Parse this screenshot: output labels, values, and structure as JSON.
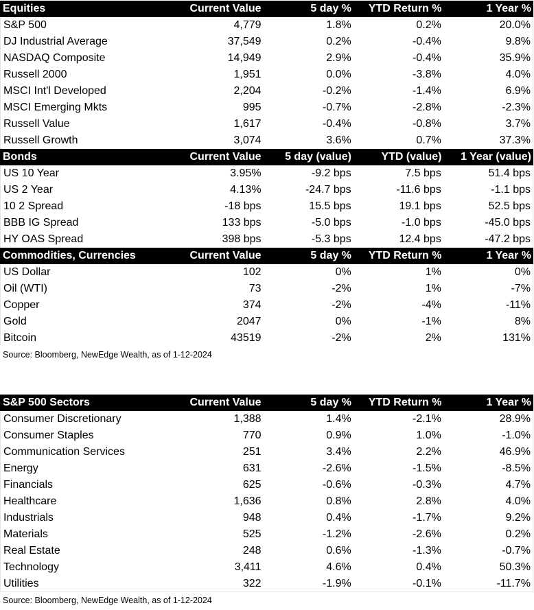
{
  "sections": [
    {
      "header": [
        "Equities",
        "Current Value",
        "5 day %",
        "YTD Return %",
        "1 Year %"
      ],
      "rows": [
        [
          "S&P 500",
          "4,779",
          "1.8%",
          "0.2%",
          "20.0%"
        ],
        [
          "DJ Industrial Average",
          "37,549",
          "0.2%",
          "-0.4%",
          "9.8%"
        ],
        [
          "NASDAQ Composite",
          "14,949",
          "2.9%",
          "-0.4%",
          "35.9%"
        ],
        [
          "Russell 2000",
          "1,951",
          "0.0%",
          "-3.8%",
          "4.0%"
        ],
        [
          "MSCI Int'l Developed",
          "2,204",
          "-0.2%",
          "-1.4%",
          "6.9%"
        ],
        [
          "MSCI Emerging Mkts",
          "995",
          "-0.7%",
          "-2.8%",
          "-2.3%"
        ],
        [
          "Russell Value",
          "1,617",
          "-0.4%",
          "-0.8%",
          "3.7%"
        ],
        [
          "Russell Growth",
          "3,074",
          "3.6%",
          "0.7%",
          "37.3%"
        ]
      ]
    },
    {
      "header": [
        "Bonds",
        "Current Value",
        "5 day (value)",
        "YTD (value)",
        "1 Year (value)"
      ],
      "rows": [
        [
          "US 10 Year",
          "3.95%",
          "-9.2 bps",
          "7.5 bps",
          "51.4 bps"
        ],
        [
          "US 2 Year",
          "4.13%",
          "-24.7 bps",
          "-11.6 bps",
          "-1.1 bps"
        ],
        [
          "10 2 Spread",
          "-18 bps",
          "15.5 bps",
          "19.1 bps",
          "52.5 bps"
        ],
        [
          "BBB IG Spread",
          "133 bps",
          "-5.0 bps",
          "-1.0 bps",
          "-45.0 bps"
        ],
        [
          "HY OAS Spread",
          "398 bps",
          "-5.3 bps",
          "12.4 bps",
          "-47.2 bps"
        ]
      ]
    },
    {
      "header": [
        "Commodities, Currencies",
        "Current Value",
        "5 day %",
        "YTD Return %",
        "1 Year %"
      ],
      "rows": [
        [
          "US Dollar",
          "102",
          "0%",
          "1%",
          "0%"
        ],
        [
          "Oil (WTI)",
          "73",
          "-2%",
          "1%",
          "-7%"
        ],
        [
          "Copper",
          "374",
          "-2%",
          "-4%",
          "-11%"
        ],
        [
          "Gold",
          "2047",
          "0%",
          "-1%",
          "8%"
        ],
        [
          "Bitcoin",
          "43519",
          "-2%",
          "2%",
          "131%"
        ]
      ]
    }
  ],
  "source1": "Source: Bloomberg, NewEdge Wealth, as of 1-12-2024",
  "sectors": {
    "header": [
      "S&P 500 Sectors",
      "Current Value",
      "5 day %",
      "YTD Return %",
      "1 Year %"
    ],
    "rows": [
      [
        "Consumer Discretionary",
        "1,388",
        "1.4%",
        "-2.1%",
        "28.9%"
      ],
      [
        "Consumer Staples",
        "770",
        "0.9%",
        "1.0%",
        "-1.0%"
      ],
      [
        "Communication Services",
        "251",
        "3.4%",
        "2.2%",
        "46.9%"
      ],
      [
        "Energy",
        "631",
        "-2.6%",
        "-1.5%",
        "-8.5%"
      ],
      [
        "Financials",
        "625",
        "-0.6%",
        "-0.3%",
        "4.7%"
      ],
      [
        "Healthcare",
        "1,636",
        "0.8%",
        "2.8%",
        "4.0%"
      ],
      [
        "Industrials",
        "948",
        "0.4%",
        "-1.7%",
        "9.2%"
      ],
      [
        "Materials",
        "525",
        "-1.2%",
        "-2.6%",
        "0.2%"
      ],
      [
        "Real Estate",
        "248",
        "0.6%",
        "-1.3%",
        "-0.7%"
      ],
      [
        "Technology",
        "3,411",
        "4.6%",
        "0.4%",
        "50.3%"
      ],
      [
        "Utilities",
        "322",
        "-1.9%",
        "-0.1%",
        "-11.7%"
      ]
    ]
  },
  "source2": "Source: Bloomberg, NewEdge Wealth, as of 1-12-2024"
}
